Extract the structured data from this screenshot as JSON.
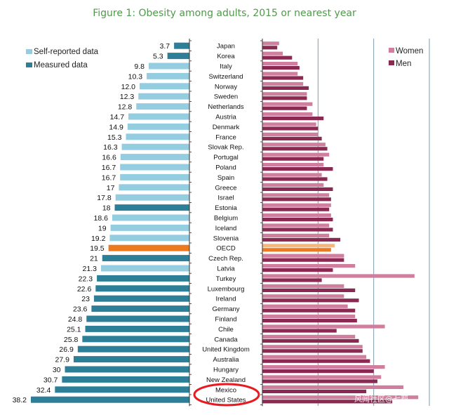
{
  "chart_data": {
    "type": "bar",
    "title": "Figure 1: Obesity among adults, 2015 or nearest year",
    "legend_left": {
      "self_reported": "Self-reported data",
      "measured": "Measured data"
    },
    "legend_right": {
      "women": "Women",
      "men": "Men"
    },
    "colors": {
      "self_reported": "#94cde0",
      "measured": "#2c7f96",
      "oecd": "#ec7a1c",
      "women": "#cf7f9d",
      "men": "#8a2a52",
      "title": "#4f9a4a",
      "highlight": "#e8191f"
    },
    "left_xlim": [
      0,
      38.2
    ],
    "right_xlim": [
      0,
      45
    ],
    "right_gridlines": [
      0,
      15,
      30,
      45
    ],
    "categories": [
      "Japan",
      "Korea",
      "Italy",
      "Switzerland",
      "Norway",
      "Sweden",
      "Netherlands",
      "Austria",
      "Denmark",
      "France",
      "Slovak Rep.",
      "Portugal",
      "Poland",
      "Spain",
      "Greece",
      "Israel",
      "Estonia",
      "Belgium",
      "Iceland",
      "Slovenia",
      "OECD",
      "Czech Rep.",
      "Latvia",
      "Turkey",
      "Luxembourg",
      "Ireland",
      "Germany",
      "Finland",
      "Chile",
      "Canada",
      "United Kingdom",
      "Australia",
      "Hungary",
      "New Zealand",
      "Mexico",
      "United States"
    ],
    "total_values": [
      "3.7",
      "5.3",
      "9.8",
      "10.3",
      "12.0",
      "12.3",
      "12.8",
      "14.7",
      "14.9",
      "15.3",
      "16.3",
      "16.6",
      "16.7",
      "16.7",
      "17",
      "17.8",
      "18",
      "18.6",
      "19",
      "19.2",
      "19.5",
      "21",
      "21.3",
      "22.3",
      "22.6",
      "23",
      "23.6",
      "24.8",
      "25.1",
      "25.8",
      "26.9",
      "27.9",
      "30",
      "30.7",
      "32.4",
      "38.2"
    ],
    "data_type": [
      "measured",
      "measured",
      "self",
      "self",
      "self",
      "self",
      "self",
      "self",
      "self",
      "self",
      "self",
      "self",
      "self",
      "self",
      "self",
      "self",
      "measured",
      "self",
      "self",
      "self",
      "oecd",
      "measured",
      "self",
      "measured",
      "measured",
      "measured",
      "measured",
      "measured",
      "measured",
      "measured",
      "measured",
      "measured",
      "measured",
      "measured",
      "measured",
      "measured"
    ],
    "women": [
      4.5,
      5.5,
      9.5,
      9.5,
      11.0,
      12.0,
      13.5,
      13.5,
      14.5,
      15.0,
      17.0,
      18.0,
      16.5,
      16.0,
      16.5,
      18.0,
      18.5,
      18.5,
      18.0,
      18.0,
      19.5,
      22.0,
      25.0,
      41.0,
      22.0,
      22.0,
      23.0,
      25.0,
      33.0,
      25.0,
      27.0,
      28.0,
      33.0,
      32.0,
      38.0,
      42.0
    ],
    "men": [
      4.0,
      8.0,
      10.0,
      11.0,
      12.5,
      12.0,
      12.0,
      16.5,
      15.0,
      16.0,
      17.5,
      16.5,
      19.0,
      17.5,
      19.0,
      18.5,
      18.0,
      19.0,
      19.0,
      21.0,
      18.5,
      22.0,
      19.0,
      16.0,
      25.0,
      26.0,
      25.0,
      25.5,
      20.0,
      26.0,
      27.0,
      29.0,
      30.0,
      31.0,
      28.0,
      35.0
    ],
    "annotation": "United States and Mexico circled in red"
  },
  "watermark": "风闻社区@七帮"
}
